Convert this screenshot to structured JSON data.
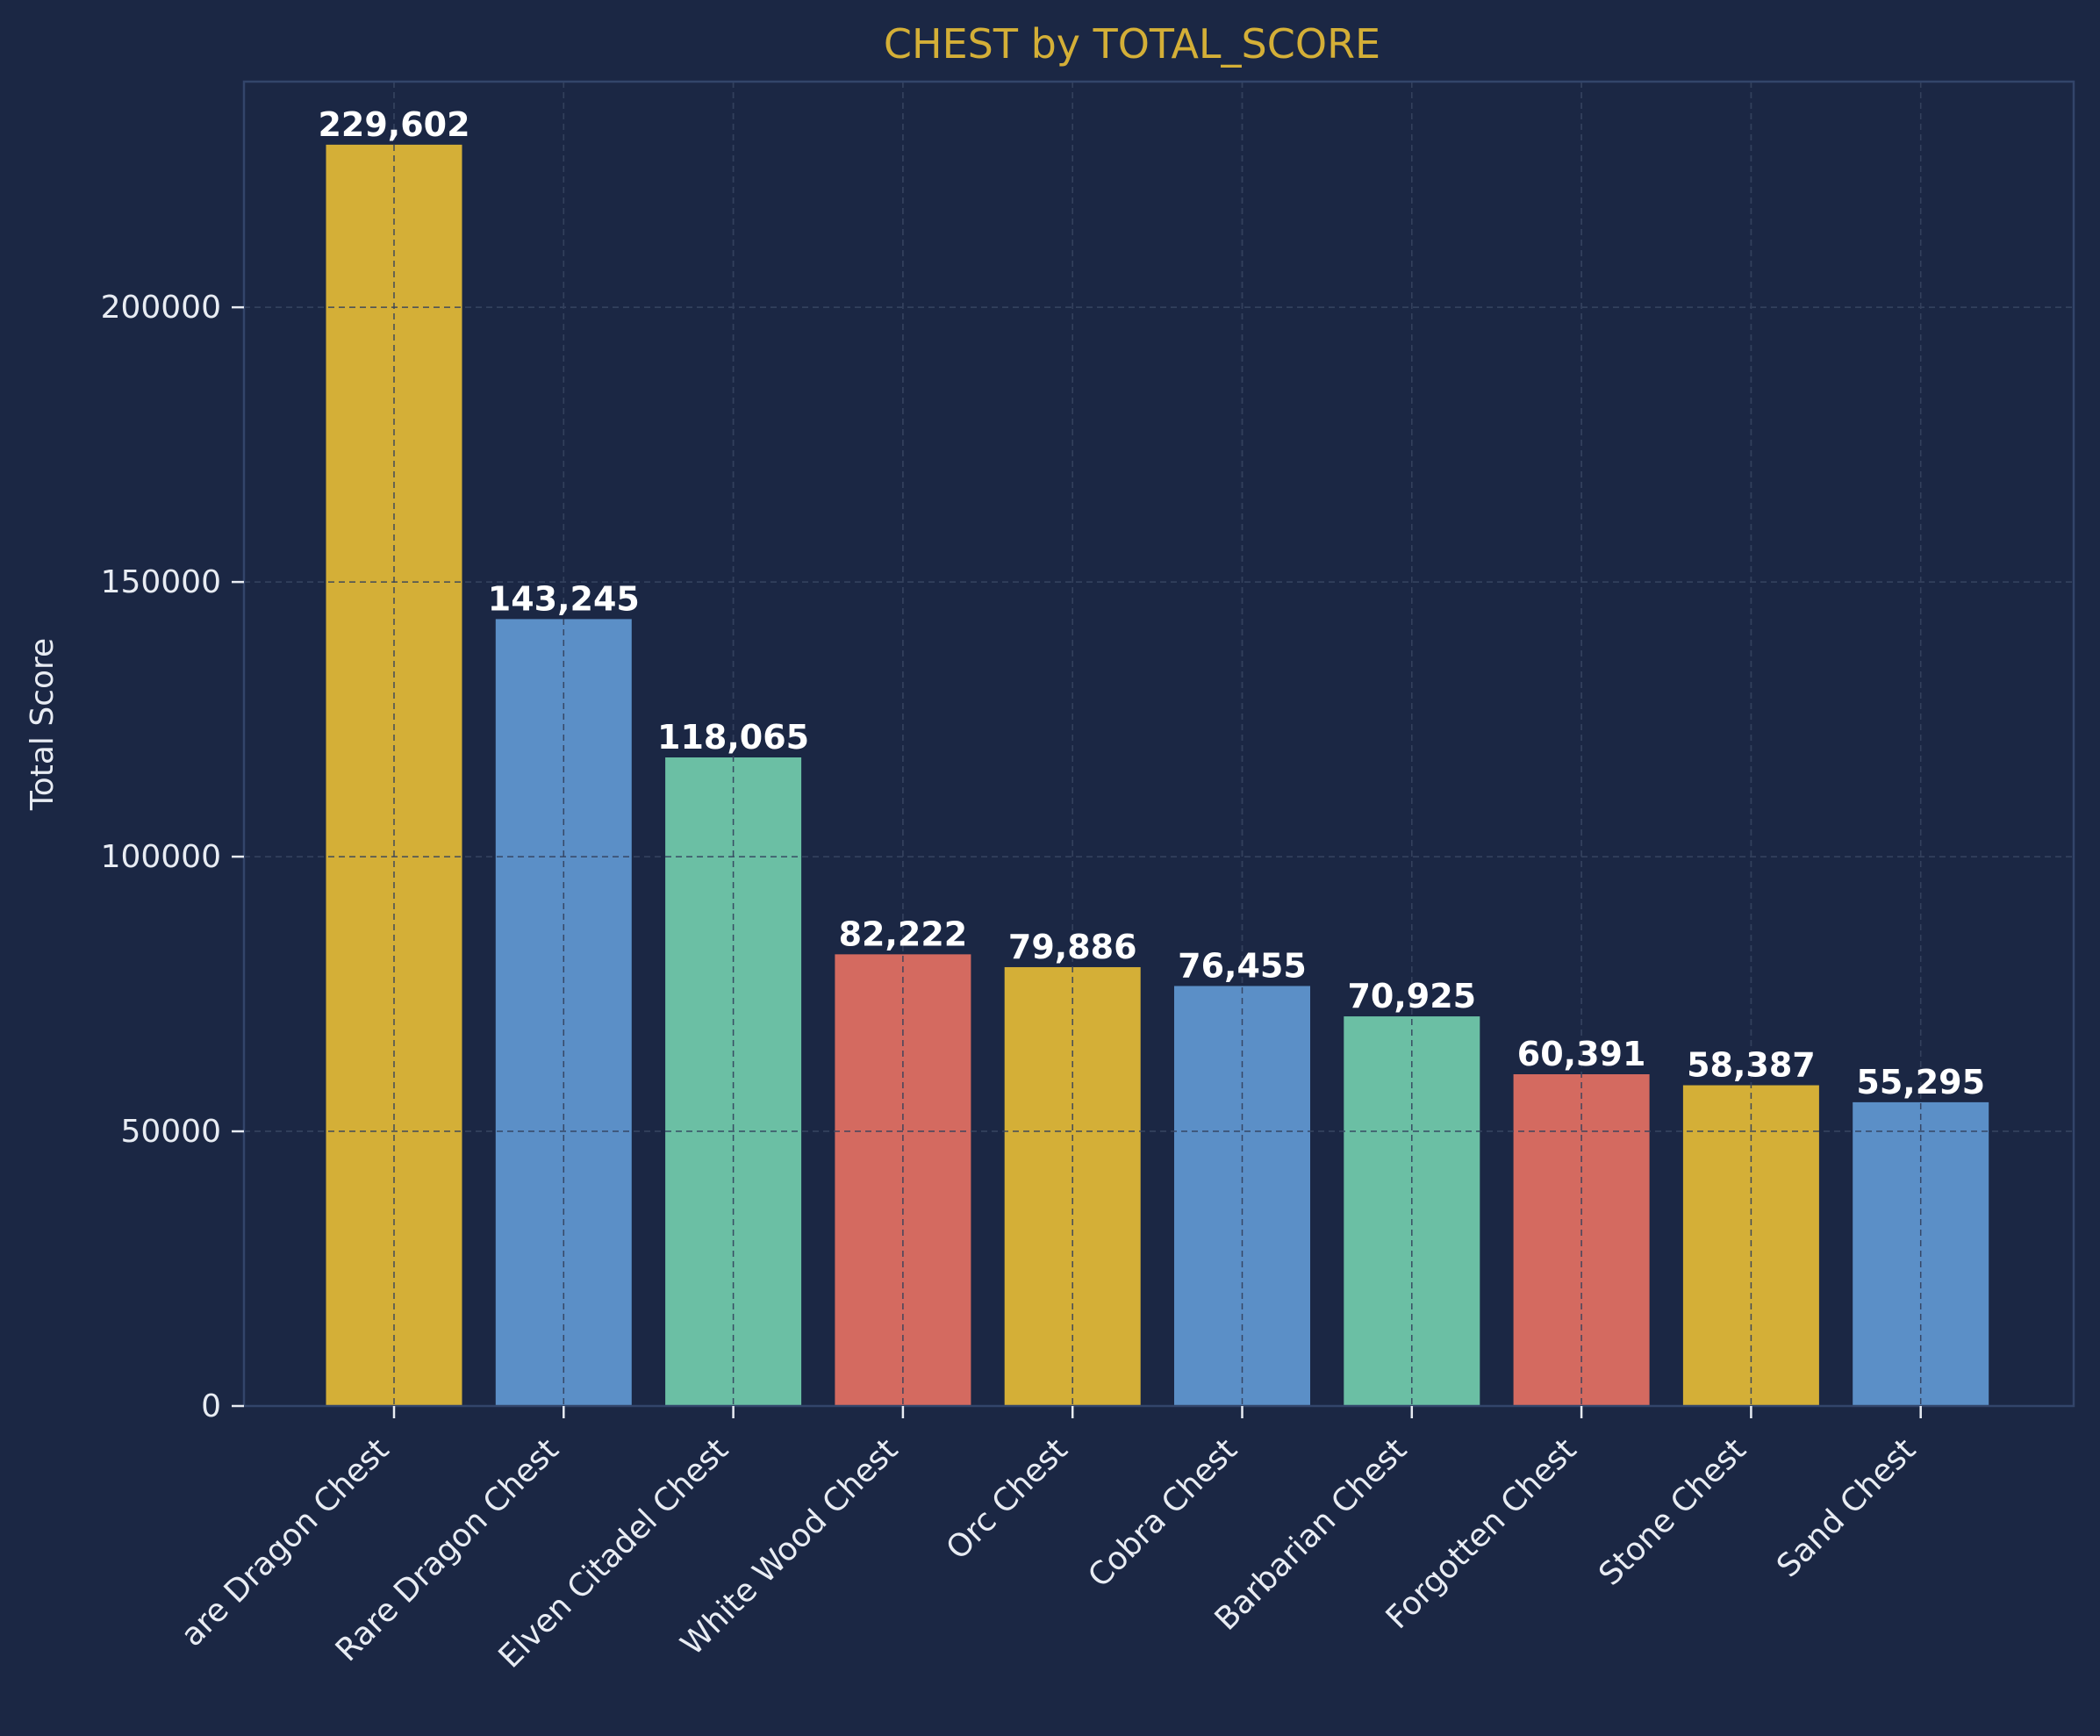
{
  "chart_data": {
    "type": "bar",
    "title": "CHEST by TOTAL_SCORE",
    "xlabel": "",
    "ylabel": "Total Score",
    "categories": [
      "are Dragon Chest",
      "Rare Dragon Chest",
      "Elven Citadel Chest",
      "White Wood Chest",
      "Orc Chest",
      "Cobra Chest",
      "Barbarian Chest",
      "Forgotten Chest",
      "Stone Chest",
      "Sand Chest"
    ],
    "values": [
      229602,
      143245,
      118065,
      82222,
      79886,
      76455,
      70925,
      60391,
      58387,
      55295
    ],
    "data_labels": [
      "229,602",
      "143,245",
      "118,065",
      "82,222",
      "79,886",
      "76,455",
      "70,925",
      "60,391",
      "58,387",
      "55,295"
    ],
    "bar_colors": [
      "#d4af37",
      "#5b8fc7",
      "#6bbfa4",
      "#d46a60",
      "#d4af37",
      "#5b8fc7",
      "#6bbfa4",
      "#d46a60",
      "#d4af37",
      "#5b8fc7"
    ],
    "y_ticks": [
      0,
      50000,
      100000,
      150000,
      200000
    ],
    "y_tick_labels": [
      "0",
      "50000",
      "100000",
      "150000",
      "200000"
    ],
    "ylim": [
      0,
      241082
    ],
    "grid": true,
    "colors": {
      "background": "#1b2744",
      "title": "#d4af37",
      "text": "#e8ecf3",
      "spine": "#33456a"
    }
  }
}
